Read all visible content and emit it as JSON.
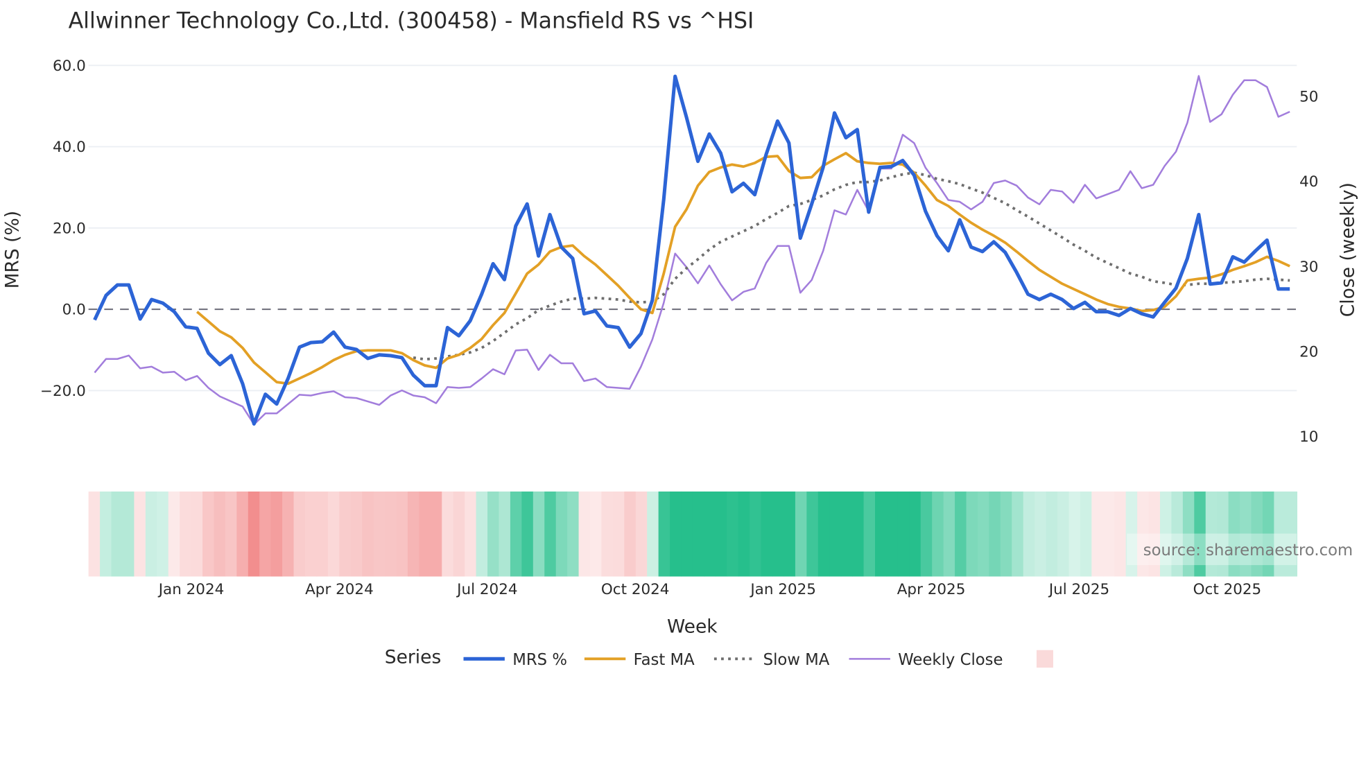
{
  "chart_data": {
    "type": "line",
    "title": "Allwinner Technology Co.,Ltd. (300458) - Mansfield RS vs ^HSI",
    "xlabel": "Week",
    "ylabel": "MRS (%)",
    "y2label": "Close (weekly)",
    "ylim": [
      -30,
      62
    ],
    "y2lim": [
      8,
      55
    ],
    "yticks": [
      "60.0",
      "40.0",
      "20.0",
      "0.0",
      "−20.0"
    ],
    "ytick_values": [
      60,
      40,
      20,
      0,
      -20
    ],
    "y2ticks": [
      "50",
      "40",
      "30",
      "20",
      "10"
    ],
    "y2tick_values": [
      50,
      40,
      30,
      20,
      10
    ],
    "xticks": [
      "Jan 2024",
      "Apr 2024",
      "Jul 2024",
      "Oct 2024",
      "Jan 2025",
      "Apr 2025",
      "Jul 2025",
      "Oct 2025"
    ],
    "xtick_index": [
      8.5,
      21.5,
      34.5,
      47.5,
      60.5,
      73.5,
      86.5,
      99.5
    ],
    "grid": true,
    "zero_line": {
      "value": 0,
      "style": "dashed",
      "color": "#6b6b78"
    },
    "legend_title": "Series",
    "legend_position": "bottom",
    "series": [
      {
        "name": "MRS %",
        "axis": "left",
        "color": "#2c64d6",
        "width": 4,
        "dash": "solid",
        "start": 0,
        "values": [
          -2.6,
          3.4,
          6,
          6,
          -2.4,
          2.4,
          1.5,
          -0.6,
          -4.3,
          -4.7,
          -10.8,
          -13.6,
          -11.4,
          -18.3,
          -28.2,
          -20.9,
          -23.3,
          -17,
          -9.3,
          -8.2,
          -8,
          -5.6,
          -9.3,
          -9.9,
          -12.1,
          -11.2,
          -11.4,
          -11.9,
          -16.2,
          -18.8,
          -18.8,
          -4.5,
          -6.5,
          -2.8,
          3.7,
          11.2,
          7.3,
          20.5,
          25.9,
          13.1,
          23.3,
          15.3,
          12.5,
          -1.1,
          -0.4,
          -4.1,
          -4.5,
          -9.3,
          -6,
          2.2,
          27,
          57.3,
          47.2,
          36.4,
          43.1,
          38.4,
          28.9,
          31,
          28.2,
          38.1,
          46.3,
          40.9,
          17.5,
          25.9,
          34.9,
          48.3,
          42.2,
          44.2,
          23.9,
          34.9,
          35.1,
          36.6,
          33,
          24.1,
          18.1,
          14.4,
          22,
          15.3,
          14.2,
          16.6,
          14,
          9.1,
          3.7,
          2.4,
          3.7,
          2.4,
          0.2,
          1.7,
          -0.6,
          -0.6,
          -1.5,
          0.2,
          -1.1,
          -1.9,
          1.7,
          5.2,
          12.5,
          23.3,
          6.2,
          6.5,
          12.9,
          11.6,
          14.4,
          17,
          5,
          5
        ]
      },
      {
        "name": "Fast MA",
        "axis": "left",
        "color": "#e3a025",
        "width": 3,
        "dash": "solid",
        "start": 9,
        "values": [
          -0.6,
          -3,
          -5.4,
          -6.9,
          -9.5,
          -13.1,
          -15.5,
          -17.9,
          -18.3,
          -17,
          -15.7,
          -14.2,
          -12.5,
          -11.2,
          -10.3,
          -10.1,
          -10.1,
          -10.1,
          -10.8,
          -12.5,
          -13.8,
          -14.4,
          -12.1,
          -11.2,
          -9.5,
          -7.3,
          -3.9,
          -0.9,
          3.9,
          8.8,
          11,
          14.2,
          15.3,
          15.7,
          13.1,
          11,
          8.4,
          5.8,
          2.8,
          0,
          -0.9,
          8.8,
          20.3,
          24.6,
          30.4,
          33.8,
          34.9,
          35.6,
          35.1,
          36,
          37.5,
          37.7,
          34,
          32.3,
          32.5,
          35.3,
          36.9,
          38.4,
          36.4,
          36,
          35.8,
          36,
          35.6,
          33.6,
          30.4,
          26.9,
          25.4,
          23.3,
          21.3,
          19.6,
          18.1,
          16.4,
          14.2,
          11.9,
          9.7,
          8,
          6.3,
          5,
          3.7,
          2.4,
          1.3,
          0.6,
          0.2,
          -0.4,
          -0.2,
          0.6,
          3.2,
          7.1,
          7.5,
          7.8,
          8.6,
          9.7,
          10.6,
          11.6,
          12.9,
          11.9,
          10.6
        ]
      },
      {
        "name": "Slow MA",
        "axis": "left",
        "color": "#6e6e6e",
        "width": 3,
        "dash": "dotted",
        "start": 28,
        "values": [
          -11.9,
          -12.3,
          -12.1,
          -11.6,
          -11.2,
          -10.6,
          -9.5,
          -7.8,
          -5.8,
          -3.7,
          -2.2,
          -0.2,
          0.9,
          1.9,
          2.6,
          2.6,
          2.8,
          2.6,
          2.4,
          1.9,
          1.7,
          1.9,
          3.7,
          7.5,
          10.1,
          12.3,
          14.7,
          16.6,
          17.9,
          19.2,
          20.5,
          22.2,
          23.7,
          25.4,
          25.9,
          26.9,
          28,
          29.5,
          30.6,
          31.3,
          31.3,
          31.7,
          32.5,
          33.2,
          33.6,
          33,
          32.1,
          31.5,
          30.8,
          29.7,
          28.7,
          27.4,
          26.1,
          24.4,
          22.8,
          21.1,
          19.4,
          17.7,
          15.9,
          14.4,
          12.7,
          11.4,
          10.1,
          8.8,
          8,
          6.9,
          6.5,
          6,
          6,
          6.3,
          6.3,
          6.5,
          6.7,
          6.9,
          7.3,
          7.5,
          7.3,
          7.1
        ]
      },
      {
        "name": "Weekly Close",
        "axis": "right",
        "color": "#a27ddc",
        "width": 2,
        "dash": "solid",
        "start": 0,
        "values": [
          17.5,
          19.1,
          19.1,
          19.5,
          18,
          18.2,
          17.5,
          17.6,
          16.6,
          17.1,
          15.7,
          14.7,
          14.1,
          13.5,
          11.4,
          12.7,
          12.7,
          13.8,
          14.9,
          14.8,
          15.1,
          15.3,
          14.6,
          14.5,
          14.1,
          13.7,
          14.8,
          15.4,
          14.8,
          14.6,
          13.9,
          15.8,
          15.7,
          15.8,
          16.8,
          17.9,
          17.3,
          20.1,
          20.2,
          17.8,
          19.6,
          18.6,
          18.6,
          16.5,
          16.8,
          15.8,
          15.7,
          15.6,
          18.2,
          21.4,
          25.7,
          31.5,
          29.9,
          28,
          30.1,
          27.9,
          26,
          27,
          27.4,
          30.4,
          32.4,
          32.4,
          26.9,
          28.4,
          31.8,
          36.6,
          36.1,
          39,
          36.5,
          41.5,
          41.5,
          45.5,
          44.5,
          41.6,
          39.8,
          37.8,
          37.6,
          36.7,
          37.6,
          39.8,
          40.1,
          39.5,
          38.1,
          37.3,
          39,
          38.8,
          37.5,
          39.6,
          38,
          38.5,
          39,
          41.2,
          39.2,
          39.6,
          41.8,
          43.5,
          46.9,
          52.4,
          47,
          47.9,
          50.2,
          51.9,
          51.9,
          51.1,
          47.6,
          48.2
        ]
      }
    ],
    "heatmap": {
      "description": "Weekly MRS strength band (green = positive, red = negative)",
      "positive_color": "#26bf8c",
      "negative_color": "#f28e8e"
    },
    "source": "source: sharemaestro.com"
  },
  "legend": {
    "title": "Series",
    "items": [
      {
        "label": "MRS %",
        "color": "#2c64d6",
        "dash": "solid"
      },
      {
        "label": "Fast MA",
        "color": "#e3a025",
        "dash": "solid"
      },
      {
        "label": "Slow MA",
        "color": "#6e6e6e",
        "dash": "dotted"
      },
      {
        "label": "Weekly Close",
        "color": "#a27ddc",
        "dash": "solid"
      }
    ],
    "swatch_color": "#fadada"
  }
}
